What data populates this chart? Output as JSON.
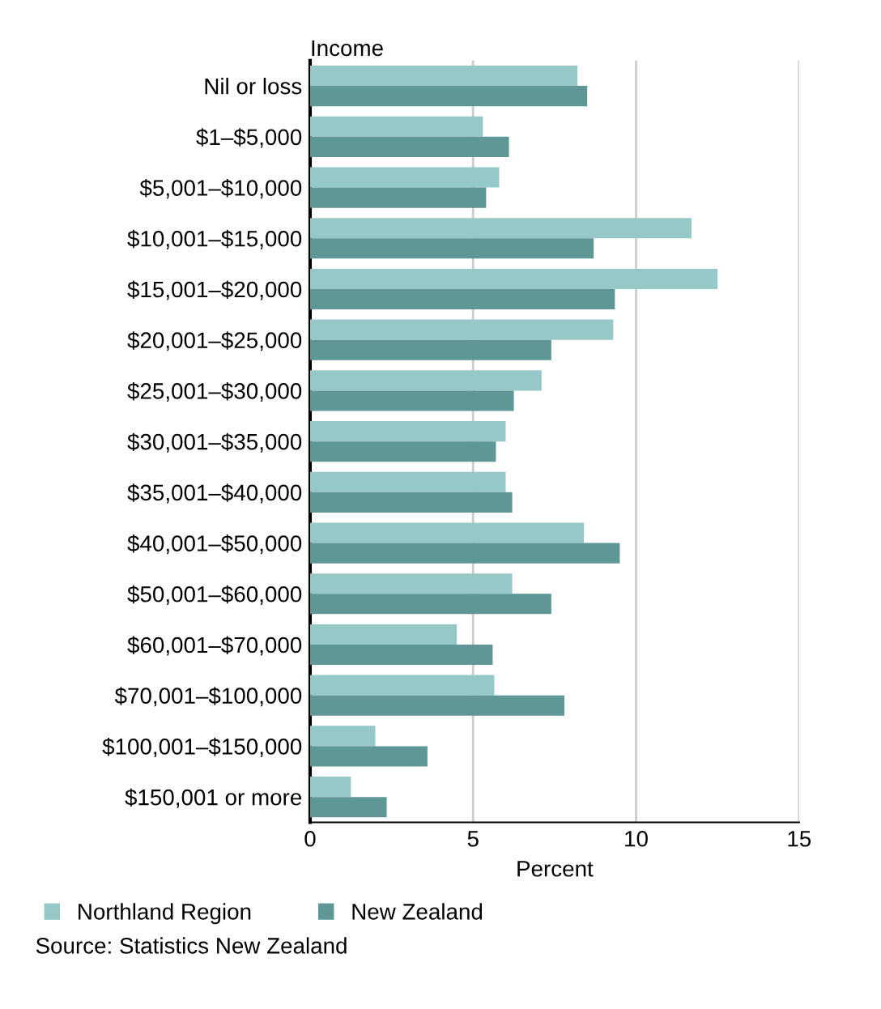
{
  "chart_data": {
    "type": "bar",
    "orientation": "horizontal",
    "ylabel": "Income",
    "xlabel": "Percent",
    "categories": [
      "Nil or loss",
      "$1–$5,000",
      "$5,001–$10,000",
      "$10,001–$15,000",
      "$15,001–$20,000",
      "$20,001–$25,000",
      "$25,001–$30,000",
      "$30,001–$35,000",
      "$35,001–$40,000",
      "$40,001–$50,000",
      "$50,001–$60,000",
      "$60,001–$70,000",
      "$70,001–$100,000",
      "$100,001–$150,000",
      "$150,001 or more"
    ],
    "series": [
      {
        "name": "Northland Region",
        "color": "#96c8c8",
        "values": [
          8.2,
          5.3,
          5.8,
          11.7,
          12.5,
          9.3,
          7.1,
          6.0,
          6.0,
          8.4,
          6.2,
          4.5,
          5.65,
          2.0,
          1.25
        ]
      },
      {
        "name": "New Zealand",
        "color": "#5f9696",
        "values": [
          8.5,
          6.1,
          5.4,
          8.7,
          9.35,
          7.4,
          6.25,
          5.7,
          6.2,
          9.5,
          7.4,
          5.6,
          7.8,
          3.6,
          2.35
        ]
      }
    ],
    "xlim": [
      0,
      15
    ],
    "xticks": [
      0,
      5,
      10,
      15
    ],
    "grid": "x",
    "legend": "bottom",
    "annotations": [
      "Source: Statistics New Zealand"
    ]
  }
}
